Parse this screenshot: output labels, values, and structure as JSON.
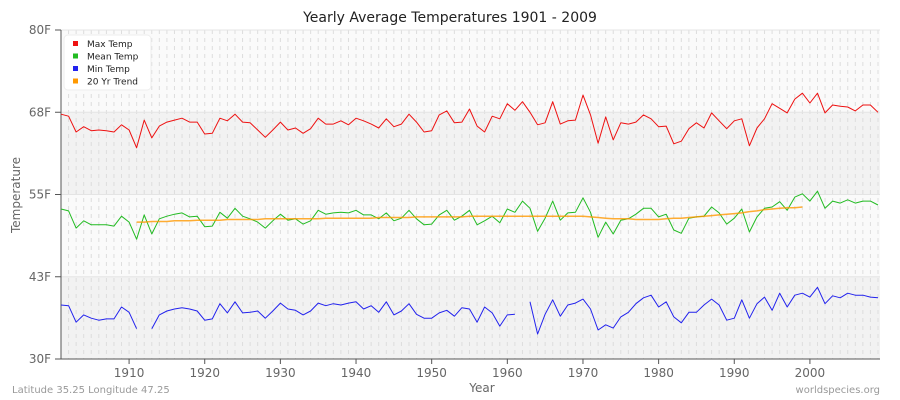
{
  "chart_data": {
    "type": "line",
    "title": "Yearly Average Temperatures 1901 - 2009",
    "xlabel": "Year",
    "ylabel": "Temperature",
    "xlim": [
      1901,
      2009
    ],
    "ylim": [
      30,
      80
    ],
    "x_ticks": [
      1910,
      1920,
      1930,
      1940,
      1950,
      1960,
      1970,
      1980,
      1990,
      2000
    ],
    "y_ticks": [
      {
        "value": 30,
        "label": "30F"
      },
      {
        "value": 42.5,
        "label": "43F"
      },
      {
        "value": 55,
        "label": "55F"
      },
      {
        "value": 67.5,
        "label": "68F"
      },
      {
        "value": 80,
        "label": "80F"
      }
    ],
    "grid": true,
    "legend_position": "top-left",
    "start_year": 1901,
    "series": [
      {
        "name": "Max Temp",
        "color": "#ee1111",
        "values": [
          67.2,
          66.9,
          64.5,
          65.3,
          64.7,
          64.8,
          64.7,
          64.5,
          65.6,
          64.8,
          62.1,
          66.3,
          63.6,
          65.4,
          66.0,
          66.3,
          66.6,
          66.0,
          66.0,
          64.2,
          64.3,
          66.6,
          66.2,
          67.2,
          66.0,
          65.9,
          64.8,
          63.7,
          64.8,
          66.0,
          64.8,
          65.1,
          64.3,
          65.0,
          66.6,
          65.7,
          65.7,
          66.2,
          65.6,
          66.6,
          66.2,
          65.7,
          65.1,
          66.5,
          65.3,
          65.7,
          67.2,
          66.0,
          64.5,
          64.7,
          67.1,
          67.7,
          65.9,
          66.0,
          68.0,
          65.4,
          64.5,
          66.9,
          66.5,
          68.8,
          67.8,
          69.1,
          67.5,
          65.6,
          65.9,
          69.1,
          65.7,
          66.2,
          66.3,
          70.1,
          67.1,
          62.8,
          66.8,
          63.3,
          65.9,
          65.7,
          66.0,
          67.1,
          66.5,
          65.3,
          65.4,
          62.7,
          63.1,
          65.0,
          65.9,
          65.1,
          67.4,
          66.2,
          65.0,
          66.2,
          66.5,
          62.4,
          65.1,
          66.5,
          68.8,
          68.1,
          67.4,
          69.5,
          70.4,
          68.9,
          70.4,
          67.4,
          68.6,
          68.4,
          68.3,
          67.7,
          68.6,
          68.6,
          67.5
        ]
      },
      {
        "name": "Mean Temp",
        "color": "#22bb22",
        "values": [
          52.8,
          52.5,
          49.9,
          51.0,
          50.4,
          50.4,
          50.4,
          50.2,
          51.7,
          50.8,
          48.2,
          51.9,
          49.0,
          51.3,
          51.7,
          52.0,
          52.2,
          51.6,
          51.7,
          50.1,
          50.2,
          52.3,
          51.4,
          52.9,
          51.7,
          51.3,
          50.8,
          49.9,
          51.0,
          52.0,
          51.1,
          51.3,
          50.5,
          51.0,
          52.6,
          52.0,
          52.2,
          52.3,
          52.2,
          52.6,
          51.9,
          51.9,
          51.3,
          52.2,
          51.0,
          51.4,
          52.6,
          51.3,
          50.4,
          50.5,
          51.9,
          52.6,
          51.1,
          51.7,
          52.6,
          50.4,
          51.0,
          51.7,
          50.7,
          52.8,
          52.3,
          54.0,
          52.9,
          49.4,
          51.4,
          54.0,
          51.1,
          52.2,
          52.3,
          54.5,
          52.3,
          48.5,
          50.8,
          49.0,
          51.1,
          51.3,
          52.0,
          52.9,
          52.9,
          51.6,
          52.0,
          49.6,
          49.1,
          51.4,
          51.6,
          51.7,
          53.1,
          52.2,
          50.5,
          51.4,
          52.8,
          49.3,
          51.6,
          52.9,
          53.1,
          53.9,
          52.6,
          54.6,
          55.1,
          54.0,
          55.5,
          52.9,
          54.0,
          53.7,
          54.2,
          53.7,
          54.0,
          54.0,
          53.4
        ]
      },
      {
        "name": "Min Temp",
        "color": "#2222ee",
        "values": [
          38.2,
          38.1,
          35.6,
          36.7,
          36.2,
          35.9,
          36.1,
          36.1,
          37.9,
          37.1,
          34.6,
          null,
          34.6,
          36.7,
          37.3,
          37.6,
          37.8,
          37.6,
          37.3,
          35.9,
          36.1,
          38.4,
          37.0,
          38.7,
          37.0,
          37.1,
          37.3,
          36.2,
          37.3,
          38.5,
          37.6,
          37.4,
          36.7,
          37.3,
          38.5,
          38.1,
          38.4,
          38.2,
          38.5,
          38.7,
          37.6,
          38.1,
          37.1,
          38.7,
          36.7,
          37.3,
          38.4,
          36.8,
          36.2,
          36.2,
          37.0,
          37.4,
          36.5,
          37.8,
          37.6,
          35.6,
          37.9,
          37.0,
          35.0,
          36.7,
          36.8,
          null,
          38.7,
          33.8,
          36.8,
          39.0,
          36.5,
          38.2,
          38.5,
          39.1,
          37.6,
          34.4,
          35.2,
          34.7,
          36.4,
          37.1,
          38.4,
          39.3,
          39.7,
          37.9,
          38.7,
          36.4,
          35.5,
          37.1,
          37.1,
          38.2,
          39.1,
          38.2,
          35.9,
          36.2,
          39.0,
          36.2,
          38.4,
          39.4,
          37.4,
          40.0,
          37.9,
          39.7,
          40.0,
          39.4,
          40.9,
          38.4,
          39.6,
          39.3,
          40.0,
          39.7,
          39.7,
          39.4,
          39.3
        ]
      },
      {
        "name": "20 Yr Trend",
        "color": "#ff9900",
        "start_year": 1911,
        "values": [
          50.8,
          50.8,
          50.9,
          50.9,
          50.9,
          51.0,
          51.0,
          51.0,
          51.1,
          51.1,
          51.1,
          51.1,
          51.2,
          51.2,
          51.2,
          51.2,
          51.2,
          51.3,
          51.3,
          51.3,
          51.3,
          51.3,
          51.3,
          51.3,
          51.3,
          51.4,
          51.4,
          51.4,
          51.4,
          51.4,
          51.4,
          51.4,
          51.5,
          51.5,
          51.5,
          51.5,
          51.5,
          51.6,
          51.6,
          51.6,
          51.6,
          51.6,
          51.6,
          51.6,
          51.7,
          51.7,
          51.7,
          51.7,
          51.7,
          51.7,
          51.7,
          51.7,
          51.7,
          51.7,
          51.7,
          51.7,
          51.7,
          51.7,
          51.7,
          51.7,
          51.6,
          51.5,
          51.4,
          51.3,
          51.3,
          51.3,
          51.2,
          51.2,
          51.2,
          51.2,
          51.3,
          51.4,
          51.4,
          51.5,
          51.6,
          51.7,
          51.8,
          51.9,
          52.0,
          52.1,
          52.2,
          52.4,
          52.5,
          52.7,
          52.8,
          52.9,
          53.0,
          53.0,
          53.1
        ]
      }
    ]
  },
  "footer": {
    "location": "Latitude 35.25 Longitude 47.25",
    "source": "worldspecies.org"
  }
}
